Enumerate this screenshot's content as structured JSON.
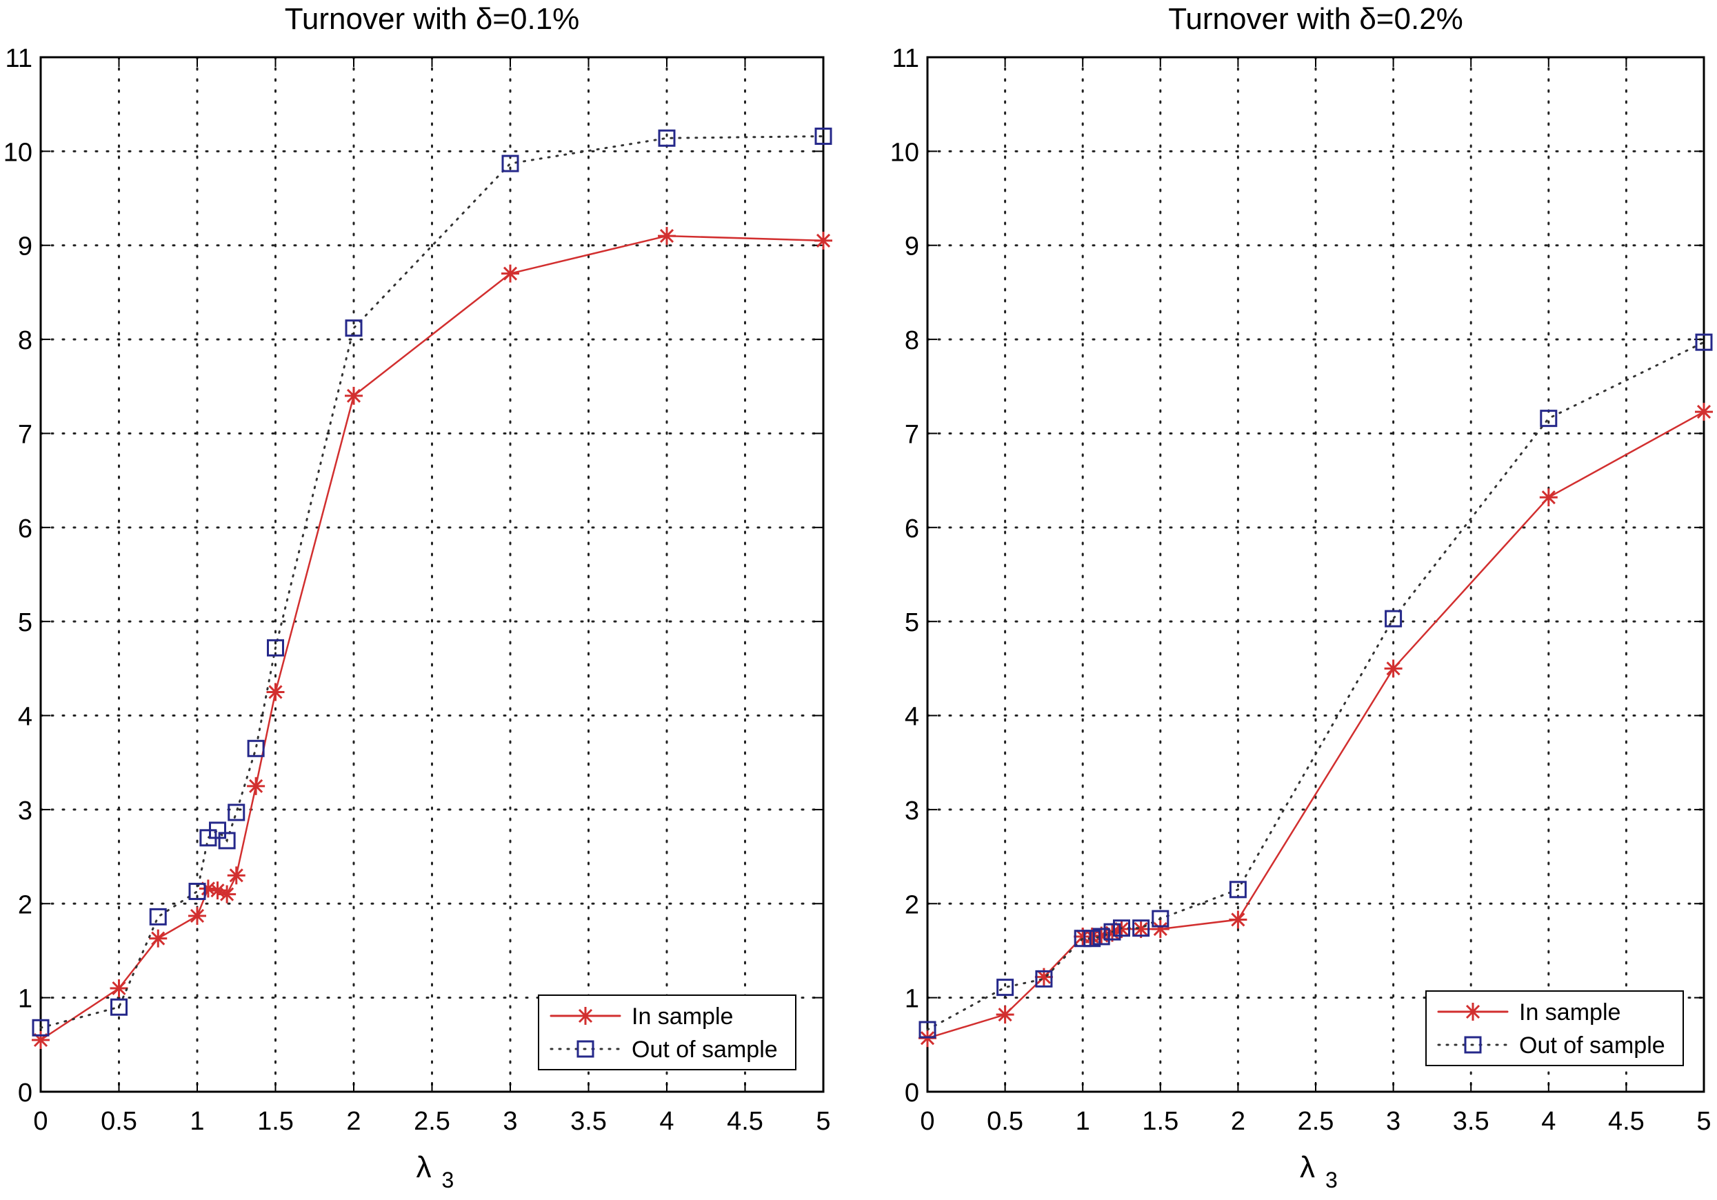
{
  "chart_data": [
    {
      "type": "line",
      "title": "Turnover with δ=0.1%",
      "xlabel": "λ",
      "xlabel_subscript": "3",
      "ylabel": "",
      "xlim": [
        0,
        5
      ],
      "ylim": [
        0,
        11
      ],
      "xticks": [
        "0",
        "0.5",
        "1",
        "1.5",
        "2",
        "2.5",
        "3",
        "3.5",
        "4",
        "4.5",
        "5"
      ],
      "yticks": [
        "0",
        "1",
        "2",
        "3",
        "4",
        "5",
        "6",
        "7",
        "8",
        "9",
        "10",
        "11"
      ],
      "grid": true,
      "legend_position": "bottom-right",
      "x": [
        0,
        0.5,
        0.75,
        1,
        1.07,
        1.13,
        1.19,
        1.25,
        1.375,
        1.5,
        2,
        3,
        4,
        5
      ],
      "series": [
        {
          "name": "In sample",
          "color": "#d22f2f",
          "marker": "star",
          "line": "solid",
          "values": [
            0.55,
            1.1,
            1.63,
            1.87,
            2.16,
            2.14,
            2.1,
            2.3,
            3.25,
            4.25,
            7.4,
            8.7,
            9.1,
            9.05
          ]
        },
        {
          "name": "Out of sample",
          "color": "#25288a",
          "marker": "square",
          "line": "dotted",
          "values": [
            0.68,
            0.9,
            1.86,
            2.13,
            2.7,
            2.78,
            2.67,
            2.97,
            3.65,
            4.72,
            8.12,
            9.87,
            10.14,
            10.16
          ]
        }
      ]
    },
    {
      "type": "line",
      "title": "Turnover with δ=0.2%",
      "xlabel": "λ",
      "xlabel_subscript": "3",
      "ylabel": "",
      "xlim": [
        0,
        5
      ],
      "ylim": [
        0,
        11
      ],
      "xticks": [
        "0",
        "0.5",
        "1",
        "1.5",
        "2",
        "2.5",
        "3",
        "3.5",
        "4",
        "4.5",
        "5"
      ],
      "yticks": [
        "0",
        "1",
        "2",
        "3",
        "4",
        "5",
        "6",
        "7",
        "8",
        "9",
        "10",
        "11"
      ],
      "grid": true,
      "legend_position": "bottom-right",
      "x": [
        0,
        0.5,
        0.75,
        1,
        1.06,
        1.12,
        1.19,
        1.25,
        1.375,
        1.5,
        2,
        3,
        4,
        5
      ],
      "series": [
        {
          "name": "In sample",
          "color": "#d22f2f",
          "marker": "star",
          "line": "solid",
          "values": [
            0.57,
            0.82,
            1.22,
            1.65,
            1.65,
            1.66,
            1.69,
            1.73,
            1.73,
            1.73,
            1.83,
            4.5,
            6.32,
            7.23
          ]
        },
        {
          "name": "Out of sample",
          "color": "#25288a",
          "marker": "square",
          "line": "dotted",
          "values": [
            0.66,
            1.11,
            1.2,
            1.63,
            1.63,
            1.65,
            1.7,
            1.74,
            1.74,
            1.84,
            2.15,
            5.03,
            7.16,
            7.97
          ]
        }
      ]
    }
  ]
}
